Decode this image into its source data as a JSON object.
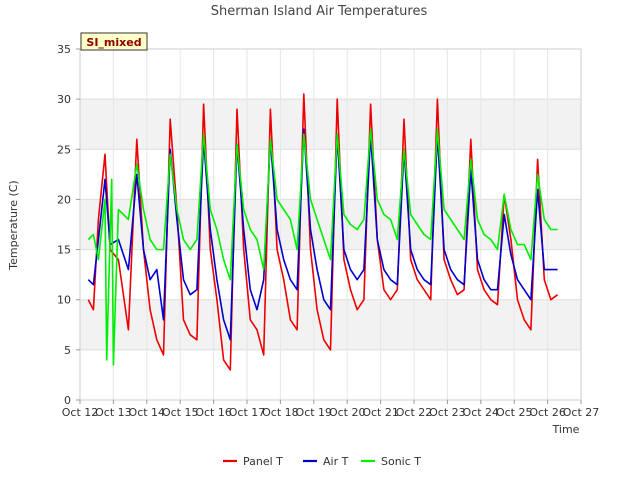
{
  "chart_data": {
    "type": "line",
    "title": "Sherman Island Air Temperatures",
    "xlabel": "Time",
    "ylabel": "Temperature (C)",
    "annotation": "SI_mixed",
    "xlim": [
      12,
      27
    ],
    "ylim": [
      0,
      35
    ],
    "x_ticks": [
      12,
      13,
      14,
      15,
      16,
      17,
      18,
      19,
      20,
      21,
      22,
      23,
      24,
      25,
      26,
      27
    ],
    "x_tick_labels": [
      "Oct 12",
      "Oct 13",
      "Oct 14",
      "Oct 15",
      "Oct 16",
      "Oct 17",
      "Oct 18",
      "Oct 19",
      "Oct 20",
      "Oct 21",
      "Oct 22",
      "Oct 23",
      "Oct 24",
      "Oct 25",
      "Oct 26",
      "Oct 27"
    ],
    "y_ticks": [
      0,
      5,
      10,
      15,
      20,
      25,
      30,
      35
    ],
    "y_tick_labels": [
      "0",
      "5",
      "10",
      "15",
      "20",
      "25",
      "30",
      "35"
    ],
    "grid": true,
    "legend_position": "bottom-center",
    "series": [
      {
        "name": "Panel T",
        "color": "#ee0000",
        "x": [
          12.25,
          12.4,
          12.55,
          12.75,
          12.9,
          13.15,
          13.45,
          13.7,
          13.9,
          14.1,
          14.3,
          14.5,
          14.7,
          14.9,
          15.1,
          15.3,
          15.5,
          15.7,
          15.9,
          16.1,
          16.3,
          16.5,
          16.7,
          16.9,
          17.1,
          17.3,
          17.5,
          17.7,
          17.9,
          18.1,
          18.3,
          18.5,
          18.7,
          18.9,
          19.1,
          19.3,
          19.5,
          19.7,
          19.9,
          20.1,
          20.3,
          20.5,
          20.7,
          20.9,
          21.1,
          21.3,
          21.5,
          21.7,
          21.9,
          22.1,
          22.3,
          22.5,
          22.7,
          22.9,
          23.1,
          23.3,
          23.5,
          23.7,
          23.9,
          24.1,
          24.3,
          24.5,
          24.7,
          24.9,
          25.1,
          25.3,
          25.5,
          25.7,
          25.9,
          26.1,
          26.3
        ],
        "y": [
          10.0,
          9.0,
          18.0,
          24.5,
          15.0,
          14.0,
          7.0,
          26.0,
          15.0,
          9.0,
          6.0,
          4.5,
          28.0,
          19.0,
          8.0,
          6.5,
          6.0,
          29.5,
          15.0,
          10.0,
          4.0,
          3.0,
          29.0,
          15.0,
          8.0,
          7.0,
          4.5,
          29.0,
          15.0,
          12.0,
          8.0,
          7.0,
          30.5,
          15.0,
          9.0,
          6.0,
          5.0,
          30.0,
          14.0,
          11.0,
          9.0,
          10.0,
          29.5,
          16.0,
          11.0,
          10.0,
          11.0,
          28.0,
          14.0,
          12.0,
          11.0,
          10.0,
          30.0,
          14.0,
          12.0,
          10.5,
          11.0,
          26.0,
          13.0,
          11.0,
          10.0,
          9.5,
          20.5,
          16.0,
          10.0,
          8.0,
          7.0,
          24.0,
          12.0,
          10.0,
          10.5
        ]
      },
      {
        "name": "Air T",
        "color": "#0000cc",
        "x": [
          12.25,
          12.4,
          12.55,
          12.75,
          12.9,
          13.15,
          13.45,
          13.7,
          13.9,
          14.1,
          14.3,
          14.5,
          14.7,
          14.9,
          15.1,
          15.3,
          15.5,
          15.7,
          15.9,
          16.1,
          16.3,
          16.5,
          16.7,
          16.9,
          17.1,
          17.3,
          17.5,
          17.7,
          17.9,
          18.1,
          18.3,
          18.5,
          18.7,
          18.9,
          19.1,
          19.3,
          19.5,
          19.7,
          19.9,
          20.1,
          20.3,
          20.5,
          20.7,
          20.9,
          21.1,
          21.3,
          21.5,
          21.7,
          21.9,
          22.1,
          22.3,
          22.5,
          22.7,
          22.9,
          23.1,
          23.3,
          23.5,
          23.7,
          23.9,
          24.1,
          24.3,
          24.5,
          24.7,
          24.9,
          25.1,
          25.3,
          25.5,
          25.7,
          25.9,
          26.1,
          26.3
        ],
        "y": [
          12.0,
          11.5,
          16.0,
          22.0,
          15.5,
          16.0,
          13.0,
          22.5,
          15.0,
          12.0,
          13.0,
          8.0,
          25.0,
          18.0,
          12.0,
          10.5,
          11.0,
          26.0,
          17.0,
          12.0,
          8.0,
          6.0,
          25.5,
          17.0,
          11.0,
          9.0,
          12.0,
          26.0,
          17.0,
          14.0,
          12.0,
          11.0,
          27.0,
          17.0,
          13.0,
          10.0,
          9.0,
          26.5,
          15.0,
          13.0,
          12.0,
          13.0,
          26.5,
          16.0,
          13.0,
          12.0,
          11.5,
          25.0,
          15.0,
          13.0,
          12.0,
          11.5,
          26.5,
          15.0,
          13.0,
          12.0,
          11.5,
          23.0,
          14.0,
          12.0,
          11.0,
          11.0,
          18.5,
          14.5,
          12.0,
          11.0,
          10.0,
          21.0,
          13.0,
          13.0,
          13.0
        ]
      },
      {
        "name": "Sonic T",
        "color": "#00ee00",
        "x": [
          12.25,
          12.4,
          12.55,
          12.75,
          12.8,
          12.95,
          13.0,
          13.15,
          13.45,
          13.7,
          13.9,
          14.1,
          14.3,
          14.5,
          14.7,
          14.9,
          15.1,
          15.3,
          15.5,
          15.7,
          15.9,
          16.1,
          16.3,
          16.5,
          16.7,
          16.9,
          17.1,
          17.3,
          17.5,
          17.7,
          17.9,
          18.1,
          18.3,
          18.5,
          18.7,
          18.9,
          19.1,
          19.3,
          19.5,
          19.7,
          19.9,
          20.1,
          20.3,
          20.5,
          20.7,
          20.9,
          21.1,
          21.3,
          21.5,
          21.7,
          21.9,
          22.1,
          22.3,
          22.5,
          22.7,
          22.9,
          23.1,
          23.3,
          23.5,
          23.7,
          23.9,
          24.1,
          24.3,
          24.5,
          24.7,
          24.9,
          25.1,
          25.3,
          25.5,
          25.7,
          25.9,
          26.1,
          26.3
        ],
        "y": [
          16.0,
          16.5,
          14.0,
          20.0,
          4.0,
          22.0,
          3.5,
          19.0,
          18.0,
          23.5,
          19.0,
          16.0,
          15.0,
          15.0,
          24.5,
          19.0,
          16.0,
          15.0,
          16.0,
          26.5,
          19.0,
          17.0,
          14.0,
          12.0,
          25.5,
          19.0,
          17.0,
          16.0,
          13.0,
          26.0,
          20.0,
          19.0,
          18.0,
          15.0,
          26.5,
          20.0,
          18.0,
          16.0,
          14.0,
          26.5,
          18.5,
          17.5,
          17.0,
          18.0,
          27.0,
          20.0,
          18.5,
          18.0,
          16.0,
          25.0,
          18.5,
          17.5,
          16.5,
          16.0,
          27.0,
          19.0,
          18.0,
          17.0,
          16.0,
          24.0,
          18.0,
          16.5,
          16.0,
          15.0,
          20.5,
          17.0,
          15.5,
          15.5,
          14.0,
          22.5,
          18.0,
          17.0,
          17.0
        ]
      }
    ]
  }
}
